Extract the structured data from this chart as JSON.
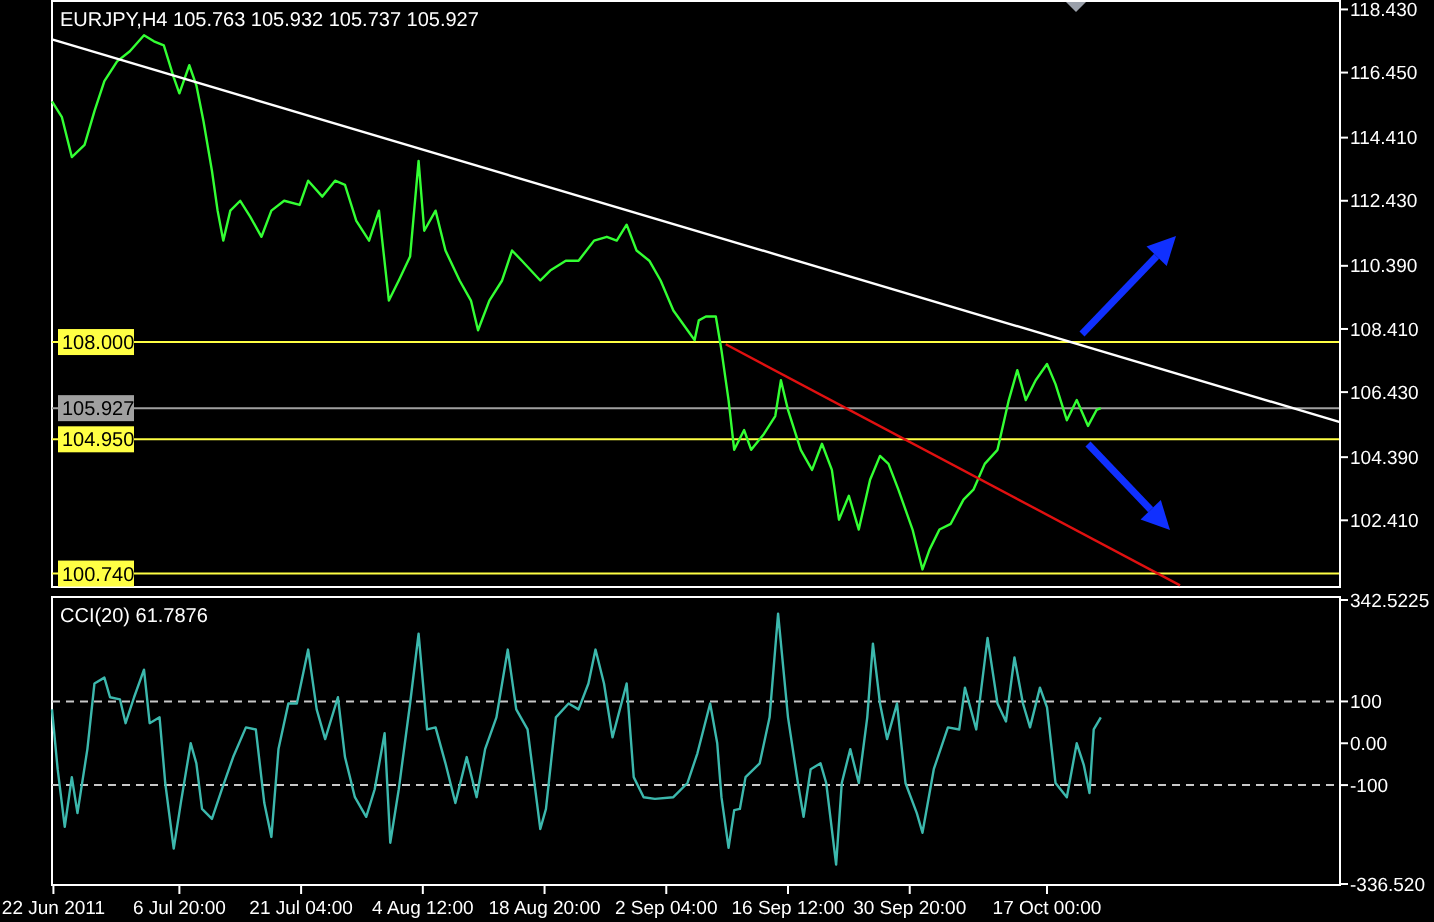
{
  "chart_data": [
    {
      "type": "line",
      "title": "EURJPY,H4 105.763 105.932 105.737 105.927",
      "xlim": [
        "2011-06-21T20:00",
        "2011-11-20T12:00"
      ],
      "ylim": [
        100.35,
        118.6
      ],
      "yticks": [
        {
          "value": 118.43,
          "label": "118.430"
        },
        {
          "value": 116.45,
          "label": "116.450"
        },
        {
          "value": 114.41,
          "label": "114.410"
        },
        {
          "value": 112.43,
          "label": "112.430"
        },
        {
          "value": 110.39,
          "label": "110.390"
        },
        {
          "value": 108.41,
          "label": "108.410"
        },
        {
          "value": 106.43,
          "label": "106.430"
        },
        {
          "value": 104.39,
          "label": "104.390"
        },
        {
          "value": 102.41,
          "label": "102.410"
        }
      ],
      "tick_labels": "y",
      "grid": false,
      "x": [
        "2011-06-21T20:00",
        "2011-06-23T00:00",
        "2011-06-24T04:00",
        "2011-06-25T16:00",
        "2011-06-26T20:00",
        "2011-06-28T00:00",
        "2011-06-29T12:00",
        "2011-07-01T00:00",
        "2011-07-02T16:00",
        "2011-07-03T20:00",
        "2011-07-05T00:00",
        "2011-07-06T04:00",
        "2011-07-06T20:00",
        "2011-07-08T00:00",
        "2011-07-08T20:00",
        "2011-07-09T16:00",
        "2011-07-10T16:00",
        "2011-07-11T08:00",
        "2011-07-12T00:00",
        "2011-07-12T20:00",
        "2011-07-14T00:00",
        "2011-07-15T04:00",
        "2011-07-16T12:00",
        "2011-07-17T16:00",
        "2011-07-19T04:00",
        "2011-07-21T00:00",
        "2011-07-22T00:00",
        "2011-07-23T16:00",
        "2011-07-25T04:00",
        "2011-07-26T08:00",
        "2011-07-27T16:00",
        "2011-07-29T04:00",
        "2011-07-30T08:00",
        "2011-07-31T12:00",
        "2011-08-01T16:00",
        "2011-08-03T00:00",
        "2011-08-04T00:00",
        "2011-08-04T16:00",
        "2011-08-06T00:00",
        "2011-08-07T04:00",
        "2011-08-08T20:00",
        "2011-08-10T04:00",
        "2011-08-11T00:00",
        "2011-08-12T08:00",
        "2011-08-13T20:00",
        "2011-08-15T00:00",
        "2011-08-16T04:00",
        "2011-08-18T08:00",
        "2011-08-19T12:00",
        "2011-08-21T08:00",
        "2011-08-22T20:00",
        "2011-08-24T16:00",
        "2011-08-26T04:00",
        "2011-08-27T08:00",
        "2011-08-28T12:00",
        "2011-08-29T16:00",
        "2011-08-31T04:00",
        "2011-09-01T12:00",
        "2011-09-03T00:00",
        "2011-09-04T16:00",
        "2011-09-05T12:00",
        "2011-09-06T00:00",
        "2011-09-06T20:00",
        "2011-09-08T00:00",
        "2011-09-08T16:00",
        "2011-09-09T12:00",
        "2011-09-10T04:00",
        "2011-09-11T08:00",
        "2011-09-12T04:00",
        "2011-09-13T16:00",
        "2011-09-15T00:00",
        "2011-09-15T16:00",
        "2011-09-16T12:00",
        "2011-09-18T00:00",
        "2011-09-19T08:00",
        "2011-09-20T12:00",
        "2011-09-21T16:00",
        "2011-09-22T12:00",
        "2011-09-23T16:00",
        "2011-09-24T20:00",
        "2011-09-26T04:00",
        "2011-09-27T08:00",
        "2011-09-28T08:00",
        "2011-09-29T12:00",
        "2011-10-01T04:00",
        "2011-10-02T08:00",
        "2011-10-03T04:00",
        "2011-10-04T08:00",
        "2011-10-05T16:00",
        "2011-10-07T04:00",
        "2011-10-08T08:00",
        "2011-10-09T16:00",
        "2011-10-11T04:00",
        "2011-10-12T12:00",
        "2011-10-13T12:00",
        "2011-10-14T12:00",
        "2011-10-15T16:00",
        "2011-10-17T00:00",
        "2011-10-18T00:00",
        "2011-10-19T08:00",
        "2011-10-20T12:00",
        "2011-10-21T20:00",
        "2011-10-22T20:00",
        "2011-10-23T08:00"
      ],
      "series": [
        {
          "color": "#33ff33",
          "values": [
            115.55,
            115.05,
            113.8,
            114.18,
            115.24,
            116.18,
            116.8,
            117.12,
            117.62,
            117.43,
            117.3,
            116.3,
            115.8,
            116.68,
            116.05,
            114.93,
            113.37,
            112.12,
            111.18,
            112.12,
            112.43,
            111.93,
            111.3,
            112.12,
            112.43,
            112.3,
            113.06,
            112.56,
            113.06,
            112.93,
            111.8,
            111.18,
            112.12,
            109.3,
            109.93,
            110.68,
            113.68,
            111.49,
            112.12,
            110.87,
            109.93,
            109.3,
            108.37,
            109.3,
            109.93,
            110.87,
            110.55,
            109.93,
            110.24,
            110.55,
            110.55,
            111.18,
            111.3,
            111.18,
            111.68,
            110.87,
            110.55,
            109.93,
            108.99,
            108.37,
            108.06,
            108.68,
            108.8,
            108.8,
            107.74,
            106.18,
            104.62,
            105.24,
            104.62,
            105.12,
            105.68,
            106.8,
            105.87,
            104.62,
            103.99,
            104.81,
            103.99,
            102.43,
            103.18,
            102.12,
            103.68,
            104.43,
            104.18,
            103.37,
            102.12,
            100.87,
            101.49,
            102.12,
            102.3,
            103.06,
            103.37,
            104.18,
            104.62,
            106.18,
            107.12,
            106.18,
            106.8,
            107.31,
            106.68,
            105.55,
            106.18,
            105.37,
            105.87,
            105.93
          ]
        },
        {
          "type": "line",
          "color": "#ffffff",
          "x": [
            "2011-06-21T20:00",
            "2011-11-20T12:00"
          ],
          "values": [
            117.49,
            105.49
          ]
        },
        {
          "type": "line",
          "color": "#e01010",
          "x": [
            "2011-09-09T04:00",
            "2011-11-01T16:00"
          ],
          "values": [
            107.93,
            100.37
          ]
        }
      ],
      "ref_lines": [
        {
          "axis": "y",
          "value": 108.0,
          "label": "108.000",
          "color": "#ffff44"
        },
        {
          "axis": "y",
          "value": 105.927,
          "label": "105.927",
          "color": "#a0a0a0"
        },
        {
          "axis": "y",
          "value": 104.95,
          "label": "104.950",
          "color": "#ffff44"
        },
        {
          "axis": "y",
          "value": 100.74,
          "label": "100.740",
          "color": "#ffff44"
        }
      ]
    },
    {
      "type": "line",
      "title": "CCI(20) 61.7876",
      "xlim": [
        "2011-06-21T20:00",
        "2011-11-20T12:00"
      ],
      "ylim": [
        -336.52,
        342.5225
      ],
      "xticks": [
        {
          "value": "2011-06-22T00:00",
          "label": "22 Jun 2011"
        },
        {
          "value": "2011-07-06T20:00",
          "label": "6 Jul 20:00"
        },
        {
          "value": "2011-07-21T04:00",
          "label": "21 Jul 04:00"
        },
        {
          "value": "2011-08-04T12:00",
          "label": "4 Aug 12:00"
        },
        {
          "value": "2011-08-18T20:00",
          "label": "18 Aug 20:00"
        },
        {
          "value": "2011-09-02T04:00",
          "label": "2 Sep 04:00"
        },
        {
          "value": "2011-09-16T12:00",
          "label": "16 Sep 12:00"
        },
        {
          "value": "2011-09-30T20:00",
          "label": "30 Sep 20:00"
        },
        {
          "value": "2011-10-17T00:00",
          "label": "17 Oct 00:00"
        }
      ],
      "yticks": [
        342.5225,
        100,
        {
          "value": 0,
          "label": "0.00"
        },
        -100,
        {
          "value": -336.52,
          "label": "-336.520"
        }
      ],
      "grid": false,
      "x": [
        "2011-06-21T20:00",
        "2011-06-22T12:00",
        "2011-06-23T08:00",
        "2011-06-24T04:00",
        "2011-06-24T20:00",
        "2011-06-26T00:00",
        "2011-06-26T20:00",
        "2011-06-28T00:00",
        "2011-06-28T16:00",
        "2011-06-29T20:00",
        "2011-06-30T12:00",
        "2011-07-01T12:00",
        "2011-07-02T16:00",
        "2011-07-03T08:00",
        "2011-07-04T12:00",
        "2011-07-05T04:00",
        "2011-07-06T04:00",
        "2011-07-07T00:00",
        "2011-07-08T04:00",
        "2011-07-08T20:00",
        "2011-07-09T12:00",
        "2011-07-10T16:00",
        "2011-07-11T20:00",
        "2011-07-13T04:00",
        "2011-07-14T16:00",
        "2011-07-15T20:00",
        "2011-07-16T20:00",
        "2011-07-17T16:00",
        "2011-07-18T12:00",
        "2011-07-19T16:00",
        "2011-07-20T16:00",
        "2011-07-22T00:00",
        "2011-07-23T00:00",
        "2011-07-24T00:00",
        "2011-07-25T12:00",
        "2011-07-26T08:00",
        "2011-07-27T12:00",
        "2011-07-28T20:00",
        "2011-07-29T20:00",
        "2011-07-31T00:00",
        "2011-07-31T16:00",
        "2011-08-01T16:00",
        "2011-08-03T00:00",
        "2011-08-04T00:00",
        "2011-08-05T00:00",
        "2011-08-06T00:00",
        "2011-08-07T04:00",
        "2011-08-08T08:00",
        "2011-08-09T16:00",
        "2011-08-10T20:00",
        "2011-08-11T20:00",
        "2011-08-13T04:00",
        "2011-08-14T12:00",
        "2011-08-15T12:00",
        "2011-08-16T20:00",
        "2011-08-18T08:00",
        "2011-08-19T00:00",
        "2011-08-20T04:00",
        "2011-08-21T16:00",
        "2011-08-22T20:00",
        "2011-08-24T00:00",
        "2011-08-24T20:00",
        "2011-08-25T20:00",
        "2011-08-26T20:00",
        "2011-08-28T12:00",
        "2011-08-29T08:00",
        "2011-08-30T12:00",
        "2011-08-31T20:00",
        "2011-09-03T00:00",
        "2011-09-04T16:00",
        "2011-09-05T20:00",
        "2011-09-07T08:00",
        "2011-09-08T04:00",
        "2011-09-08T16:00",
        "2011-09-09T12:00",
        "2011-09-10T04:00",
        "2011-09-10T20:00",
        "2011-09-11T12:00",
        "2011-09-13T04:00",
        "2011-09-14T08:00",
        "2011-09-15T08:00",
        "2011-09-16T12:00",
        "2011-09-17T16:00",
        "2011-09-18T08:00",
        "2011-09-19T04:00",
        "2011-09-20T08:00",
        "2011-09-21T00:00",
        "2011-09-22T04:00",
        "2011-09-22T20:00",
        "2011-09-23T20:00",
        "2011-09-24T20:00",
        "2011-09-25T20:00",
        "2011-09-26T12:00",
        "2011-09-27T08:00",
        "2011-09-28T04:00",
        "2011-09-29T08:00",
        "2011-09-30T08:00",
        "2011-10-01T16:00",
        "2011-10-02T08:00",
        "2011-10-03T16:00",
        "2011-10-05T08:00",
        "2011-10-06T16:00",
        "2011-10-07T08:00",
        "2011-10-08T16:00",
        "2011-10-10T00:00",
        "2011-10-11T04:00",
        "2011-10-12T04:00",
        "2011-10-13T04:00",
        "2011-10-14T04:00",
        "2011-10-15T00:00",
        "2011-10-16T04:00",
        "2011-10-17T00:00",
        "2011-10-18T00:00",
        "2011-10-19T08:00",
        "2011-10-20T12:00",
        "2011-10-21T08:00",
        "2011-10-22T00:00",
        "2011-10-22T12:00",
        "2011-10-23T08:00"
      ],
      "series": [
        {
          "color": "#3cb8ad",
          "values": [
            81,
            -62,
            -200,
            -81,
            -167,
            -14,
            143,
            157,
            110,
            105,
            48,
            110,
            176,
            48,
            62,
            -95,
            -252,
            -143,
            0,
            -48,
            -157,
            -181,
            -110,
            -33,
            38,
            33,
            -143,
            -224,
            -14,
            95,
            95,
            224,
            81,
            10,
            110,
            -33,
            -129,
            -176,
            -110,
            24,
            -238,
            -110,
            95,
            262,
            33,
            38,
            -48,
            -143,
            -33,
            -129,
            -14,
            62,
            224,
            81,
            33,
            -205,
            -157,
            62,
            95,
            81,
            143,
            224,
            143,
            14,
            143,
            -81,
            -129,
            -133,
            -129,
            -95,
            -24,
            95,
            0,
            -129,
            -250,
            -160,
            -157,
            -81,
            -48,
            62,
            310,
            62,
            -95,
            -176,
            -62,
            -48,
            -95,
            -290,
            -95,
            -14,
            -95,
            62,
            238,
            95,
            10,
            95,
            -95,
            -167,
            -214,
            -62,
            38,
            33,
            133,
            33,
            252,
            95,
            52,
            205,
            95,
            38,
            133,
            86,
            -95,
            -129,
            0,
            -52,
            -119,
            33,
            62
          ]
        }
      ],
      "ref_lines": [
        {
          "axis": "y",
          "value": 100,
          "color": "#c8c8c8",
          "line_style": "dashed"
        },
        {
          "axis": "y",
          "value": -100,
          "color": "#c8c8c8",
          "line_style": "dashed"
        }
      ]
    }
  ]
}
